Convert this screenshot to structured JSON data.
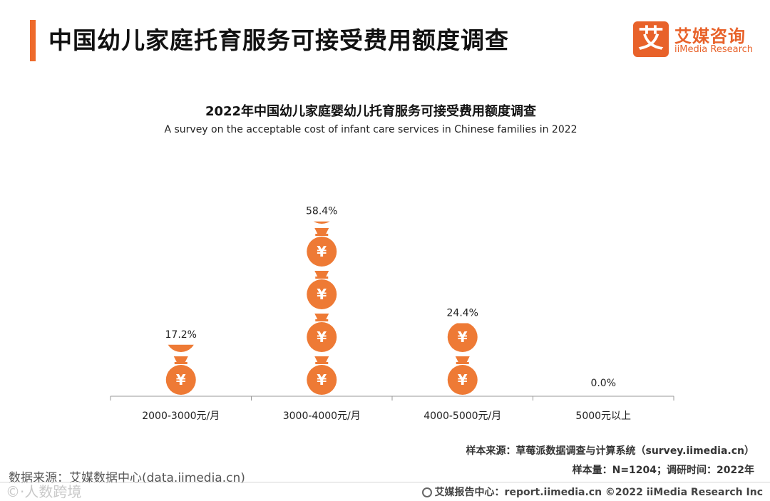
{
  "header": {
    "title": "中国幼儿家庭托育服务可接受费用额度调查"
  },
  "logo": {
    "mark": "艾",
    "name_cn": "艾媒咨询",
    "name_en": "iiMedia Research"
  },
  "chart_data": {
    "type": "bar",
    "title": "2022年中国幼儿家庭婴幼儿托育服务可接受费用额度调查",
    "subtitle": "A survey on the acceptable cost of infant care services in Chinese families in 2022",
    "categories": [
      "2000-3000元/月",
      "3000-4000元/月",
      "4000-5000元/月",
      "5000元以上"
    ],
    "values": [
      17.2,
      58.4,
      24.4,
      0.0
    ],
    "value_labels": [
      "17.2%",
      "58.4%",
      "24.4%",
      "0.0%"
    ],
    "unit": "%",
    "icon": "money-bag-icon",
    "icon_symbol": "¥",
    "bar_color": "#ee7a35",
    "ylim": [
      0,
      60
    ],
    "grid": false,
    "legend": "none"
  },
  "notes": {
    "sample_source": "样本来源：草莓派数据调查与计算系统（survey.iimedia.cn）",
    "sample_size": "样本量：N=1204；调研时间：2022年"
  },
  "source": {
    "data_source": "数据来源：艾媒数据中心(data.iimedia.cn)",
    "watermark": "©·人数跨境"
  },
  "footer": {
    "text": "艾媒报告中心：report.iimedia.cn  ©2022  iiMedia Research  Inc"
  }
}
